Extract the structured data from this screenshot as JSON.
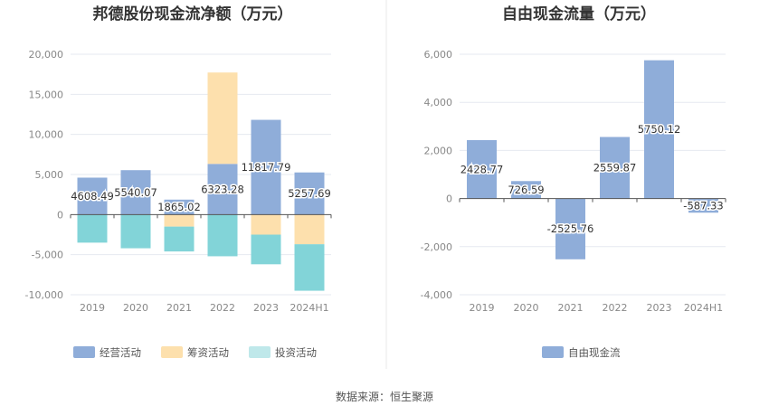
{
  "colors": {
    "operating": "#8fadd9",
    "financing": "#fde0ad",
    "investing": "#82d4d8",
    "investing_legend": "#bfe8ea",
    "fcf": "#8fadd9"
  },
  "chart_data": [
    {
      "type": "bar",
      "stacked": true,
      "title": "邦德股份现金流净额（万元）",
      "categories": [
        "2019",
        "2020",
        "2021",
        "2022",
        "2023",
        "2024H1"
      ],
      "ylim": [
        -10000,
        20000
      ],
      "yticks": [
        -10000,
        -5000,
        0,
        5000,
        10000,
        15000,
        20000
      ],
      "ytick_labels": [
        "-10,000",
        "-5,000",
        "0",
        "5,000",
        "10,000",
        "15,000",
        "20,000"
      ],
      "grid": true,
      "legend_position": "bottom",
      "series": [
        {
          "name": "经营活动",
          "color_key": "operating",
          "values": [
            4608.49,
            5540.07,
            1865.02,
            6323.28,
            11817.79,
            5257.69
          ],
          "labels": [
            "4608.49",
            "5540.07",
            "1865.02",
            "6323.28",
            "11817.79",
            "5257.69"
          ]
        },
        {
          "name": "筹资活动",
          "color_key": "financing",
          "values": [
            0,
            0,
            -1500,
            11400,
            -2500,
            -3700
          ]
        },
        {
          "name": "投资活动",
          "color_key": "investing",
          "values": [
            -3500,
            -4200,
            -3100,
            -5200,
            -3700,
            -5800
          ]
        }
      ]
    },
    {
      "type": "bar",
      "title": "自由现金流量（万元）",
      "categories": [
        "2019",
        "2020",
        "2021",
        "2022",
        "2023",
        "2024H1"
      ],
      "ylim": [
        -4000,
        6000
      ],
      "yticks": [
        -4000,
        -2000,
        0,
        2000,
        4000,
        6000
      ],
      "ytick_labels": [
        "-4,000",
        "-2,000",
        "0",
        "2,000",
        "4,000",
        "6,000"
      ],
      "grid": true,
      "legend_position": "bottom",
      "series": [
        {
          "name": "自由现金流",
          "color_key": "fcf",
          "values": [
            2428.77,
            726.59,
            -2525.76,
            2559.87,
            5750.12,
            -587.33
          ],
          "labels": [
            "2428.77",
            "726.59",
            "-2525.76",
            "2559.87",
            "5750.12",
            "-587.33"
          ]
        }
      ]
    }
  ],
  "source": "数据来源：恒生聚源"
}
